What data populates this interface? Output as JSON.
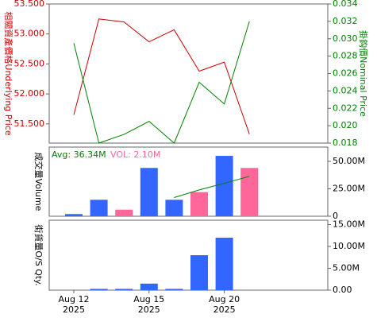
{
  "chart_data": [
    {
      "type": "line",
      "y_label": "相關資產價格Underlying Price",
      "y2_label": "掛鈎價Nominal Price",
      "ylim": [
        51.18,
        53.5
      ],
      "yticks": [
        {
          "value": 51.5,
          "label": "51.500"
        },
        {
          "value": 52,
          "label": "52.000"
        },
        {
          "value": 52.5,
          "label": "52.500"
        },
        {
          "value": 53,
          "label": "53.000"
        },
        {
          "value": 53.5,
          "label": "53.500"
        }
      ],
      "y2lim": [
        0.018,
        0.034
      ],
      "y2ticks": [
        {
          "value": 0.018,
          "label": "0.018"
        },
        {
          "value": 0.02,
          "label": "0.020"
        },
        0.022,
        0.024,
        0.026,
        0.028,
        {
          "value": 0.03,
          "label": "0.030"
        },
        0.032,
        0.034
      ],
      "series": [
        {
          "name": "Underlying Price",
          "color": "#cc0000",
          "values": [
            51.65,
            53.25,
            53.2,
            52.87,
            53.07,
            52.38,
            52.53,
            51.33
          ]
        },
        {
          "name": "Nominal Price",
          "color": "#008000",
          "axis": "y2",
          "values": [
            0.0295,
            0.018,
            0.019,
            0.0205,
            0.018,
            0.025,
            0.0225,
            0.032
          ]
        }
      ]
    },
    {
      "type": "bar",
      "y_label": "成交量Volume",
      "avg_label": "Avg: 36.34M",
      "vol_label": "VOL: 2.10M",
      "ylim": [
        0,
        63000000
      ],
      "yticks": [
        0,
        {
          "value": 25000000,
          "label": "25.00M"
        },
        {
          "value": 50000000,
          "label": "50.00M"
        }
      ],
      "values": [
        2000000,
        15000000,
        6000000,
        44000000,
        15000000,
        22000000,
        55000000,
        44000000
      ],
      "colors": [
        "#3366ff",
        "#3366ff",
        "#ff6699",
        "#3366ff",
        "#3366ff",
        "#ff6699",
        "#3366ff",
        "#ff6699"
      ],
      "avg": {
        "color": "#008000",
        "values": [
          null,
          null,
          null,
          null,
          17000000,
          24000000,
          30000000,
          36340000
        ]
      }
    },
    {
      "type": "bar",
      "y_label": "街貨量O/S Qty.",
      "color": "#3366ff",
      "ylim": [
        0,
        16000000
      ],
      "yticks": [
        {
          "value": 0,
          "label": "0.00"
        },
        {
          "value": 5000000,
          "label": "5.00M"
        },
        {
          "value": 10000000,
          "label": "10.00M"
        },
        {
          "value": 15000000,
          "label": "15.00M"
        }
      ],
      "values": [
        0,
        300000,
        300000,
        1500000,
        300000,
        8000000,
        12000000,
        null
      ],
      "categories": [
        "Aug 12",
        null,
        null,
        "Aug 15",
        null,
        null,
        "Aug 20",
        null
      ],
      "year": "2025"
    }
  ]
}
